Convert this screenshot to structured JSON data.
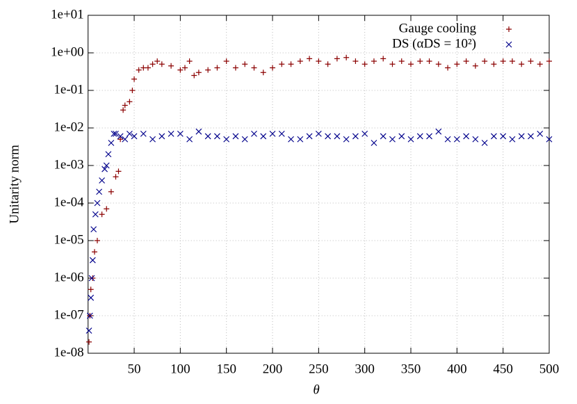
{
  "chart_data": {
    "type": "scatter",
    "xlabel": "θ",
    "ylabel": "Unitarity norm",
    "xlim": [
      0,
      500
    ],
    "xticks": [
      50,
      100,
      150,
      200,
      250,
      300,
      350,
      400,
      450,
      500
    ],
    "ylim": [
      1e-08,
      10
    ],
    "log_y": true,
    "grid": true,
    "legend": "upper right",
    "yticks": [
      {
        "value": 1e-08,
        "label": "1e-08"
      },
      {
        "value": 1e-07,
        "label": "1e-07"
      },
      {
        "value": 1e-06,
        "label": "1e-06"
      },
      {
        "value": 1e-05,
        "label": "1e-05"
      },
      {
        "value": 0.0001,
        "label": "1e-04"
      },
      {
        "value": 0.001,
        "label": "1e-03"
      },
      {
        "value": 0.01,
        "label": "1e-02"
      },
      {
        "value": 0.1,
        "label": "1e-01"
      },
      {
        "value": 1,
        "label": "1e+00"
      },
      {
        "value": 10,
        "label": "1e+01"
      }
    ],
    "series": [
      {
        "name": "Gauge cooling",
        "color": "#8b0000",
        "marker": "plus",
        "x": [
          1,
          2,
          3,
          5,
          7,
          10,
          15,
          20,
          25,
          30,
          33,
          35,
          38,
          40,
          45,
          48,
          50,
          55,
          60,
          65,
          70,
          75,
          80,
          90,
          100,
          105,
          110,
          115,
          120,
          130,
          140,
          150,
          160,
          170,
          180,
          190,
          200,
          210,
          220,
          230,
          240,
          250,
          260,
          270,
          280,
          290,
          300,
          310,
          320,
          330,
          340,
          350,
          360,
          370,
          380,
          390,
          400,
          410,
          420,
          430,
          440,
          450,
          460,
          470,
          480,
          490,
          500
        ],
        "values": [
          2e-08,
          1e-07,
          5e-07,
          1e-06,
          5e-06,
          1e-05,
          5e-05,
          7e-05,
          0.0002,
          0.0005,
          0.0007,
          0.005,
          0.03,
          0.04,
          0.05,
          0.1,
          0.2,
          0.35,
          0.4,
          0.4,
          0.5,
          0.6,
          0.5,
          0.45,
          0.35,
          0.4,
          0.6,
          0.25,
          0.3,
          0.35,
          0.4,
          0.6,
          0.4,
          0.5,
          0.4,
          0.3,
          0.4,
          0.5,
          0.5,
          0.6,
          0.7,
          0.6,
          0.5,
          0.7,
          0.75,
          0.6,
          0.5,
          0.6,
          0.7,
          0.5,
          0.6,
          0.5,
          0.6,
          0.6,
          0.5,
          0.4,
          0.5,
          0.6,
          0.45,
          0.6,
          0.5,
          0.6,
          0.6,
          0.5,
          0.6,
          0.5,
          0.6
        ]
      },
      {
        "name": "DS (αDS = 10²)",
        "color": "#00008b",
        "marker": "cross",
        "x": [
          1,
          2,
          3,
          4,
          5,
          6,
          8,
          10,
          12,
          15,
          18,
          20,
          22,
          25,
          28,
          30,
          35,
          40,
          45,
          50,
          60,
          70,
          80,
          90,
          100,
          110,
          120,
          130,
          140,
          150,
          160,
          170,
          180,
          190,
          200,
          210,
          220,
          230,
          240,
          250,
          260,
          270,
          280,
          290,
          300,
          310,
          320,
          330,
          340,
          350,
          360,
          370,
          380,
          390,
          400,
          410,
          420,
          430,
          440,
          450,
          460,
          470,
          480,
          490,
          500
        ],
        "values": [
          4e-08,
          1e-07,
          3e-07,
          1e-06,
          3e-06,
          2e-05,
          5e-05,
          0.0001,
          0.0002,
          0.0004,
          0.0008,
          0.001,
          0.002,
          0.004,
          0.007,
          0.007,
          0.006,
          0.005,
          0.007,
          0.006,
          0.007,
          0.005,
          0.006,
          0.007,
          0.007,
          0.005,
          0.008,
          0.006,
          0.006,
          0.005,
          0.006,
          0.005,
          0.007,
          0.006,
          0.007,
          0.007,
          0.005,
          0.005,
          0.006,
          0.007,
          0.006,
          0.006,
          0.005,
          0.006,
          0.007,
          0.004,
          0.006,
          0.005,
          0.006,
          0.005,
          0.006,
          0.006,
          0.008,
          0.005,
          0.005,
          0.006,
          0.005,
          0.004,
          0.006,
          0.006,
          0.005,
          0.006,
          0.006,
          0.007,
          0.005
        ]
      }
    ]
  }
}
